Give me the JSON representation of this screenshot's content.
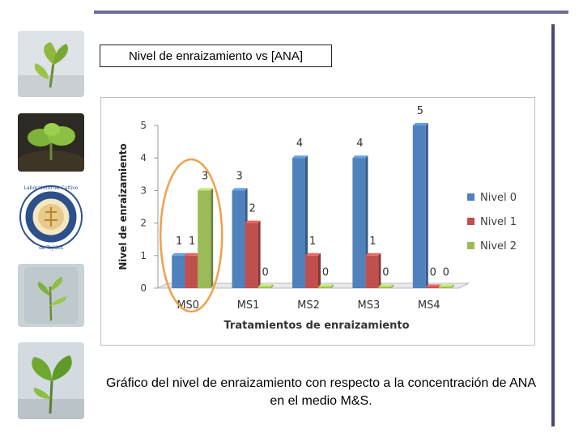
{
  "slide": {
    "title": "Nivel de enraizamiento vs [ANA]",
    "caption": "Gráfico del nivel de enraizamiento con respecto a la concentración de ANA en el medio M&S."
  },
  "sidebar": {
    "items": [
      {
        "name": "plant-cutting-photo",
        "kind": "photo"
      },
      {
        "name": "seedling-soil-photo",
        "kind": "photo"
      },
      {
        "name": "lab-logo",
        "kind": "logo",
        "text": "Laboratorio de Cultivo de Tejidos INGENIERIA EN BIOTECNOLOGIA"
      },
      {
        "name": "plantlet-jar-photo",
        "kind": "photo"
      },
      {
        "name": "leaf-plantlet-photo",
        "kind": "photo"
      }
    ]
  },
  "colors": {
    "nivel0": "#4f81bd",
    "nivel1": "#c0504d",
    "nivel2": "#9bbb59",
    "highlight_ellipse": "#f0a04b",
    "rule": "#5a5a88"
  },
  "chart_data": {
    "type": "bar",
    "title": "",
    "xlabel": "Tratamientos de enraizamiento",
    "ylabel": "Nivel de enraizamiento",
    "categories": [
      "MS0",
      "MS1",
      "MS2",
      "MS3",
      "MS4"
    ],
    "series": [
      {
        "name": "Nivel 0",
        "values": [
          1,
          3,
          4,
          4,
          5
        ]
      },
      {
        "name": "Nivel 1",
        "values": [
          1,
          2,
          1,
          1,
          0
        ]
      },
      {
        "name": "Nivel 2",
        "values": [
          3,
          0,
          0,
          0,
          0
        ]
      }
    ],
    "ylim": [
      0,
      5
    ],
    "yticks": [
      0,
      1,
      2,
      3,
      4,
      5
    ],
    "legend_position": "right",
    "grid": false,
    "data_labels": true,
    "style": "3d-bar",
    "highlight_category": "MS0"
  }
}
